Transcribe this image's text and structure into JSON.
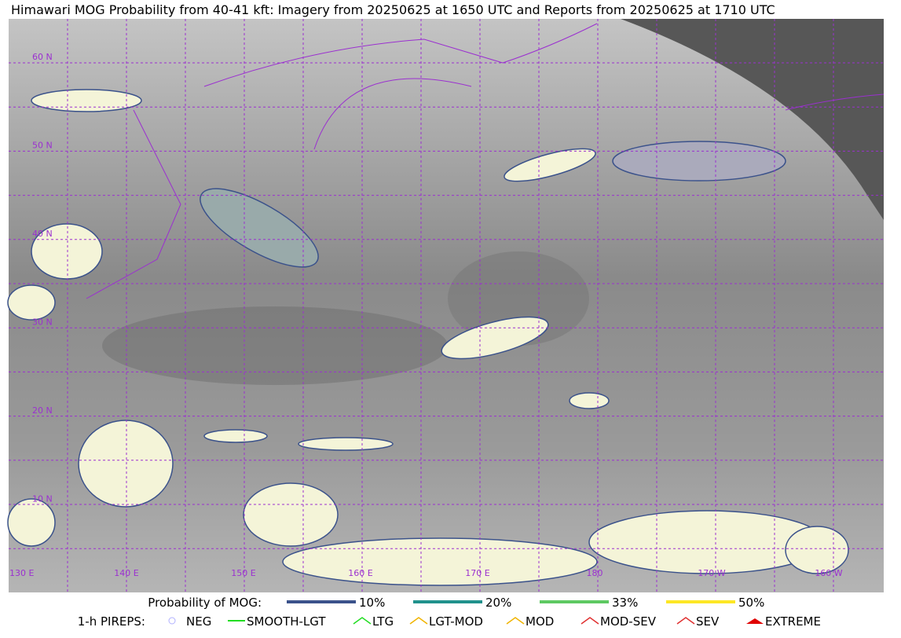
{
  "title": "Himawari MOG Probability from 40-41 kft: Imagery from 20250625 at 1650 UTC and Reports from 20250625 at 1710 UTC",
  "map": {
    "lat_labels": [
      "60 N",
      "50 N",
      "40 N",
      "30 N",
      "20 N",
      "10 N"
    ],
    "lon_labels": [
      "130 E",
      "140 E",
      "150 E",
      "160 E",
      "170 E",
      "180",
      "170 W",
      "160 W"
    ]
  },
  "legend": {
    "probability": {
      "title": "Probability of MOG:",
      "items": [
        {
          "label": "10%",
          "color": "#3b528b"
        },
        {
          "label": "20%",
          "color": "#21918c"
        },
        {
          "label": "33%",
          "color": "#5ec962"
        },
        {
          "label": "50%",
          "color": "#fde725"
        }
      ]
    },
    "pireps": {
      "title": "1-h PIREPS:",
      "items": [
        {
          "label": "NEG",
          "color": "#b0b0ff"
        },
        {
          "label": "SMOOTH-LGT",
          "color": "#22dd22"
        },
        {
          "label": "LTG",
          "color": "#22dd22"
        },
        {
          "label": "LGT-MOD",
          "color": "#f0b400"
        },
        {
          "label": "MOD",
          "color": "#f0b400"
        },
        {
          "label": "MOD-SEV",
          "color": "#e03030"
        },
        {
          "label": "SEV",
          "color": "#e03030"
        },
        {
          "label": "EXTREME",
          "color": "#e00000"
        }
      ]
    }
  }
}
